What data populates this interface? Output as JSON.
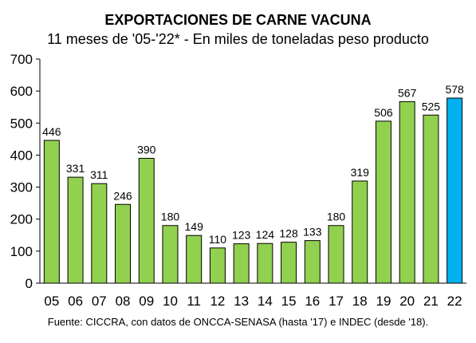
{
  "title": "EXPORTACIONES DE CARNE VACUNA",
  "subtitle": "11 meses de '05-'22* - En miles de toneladas peso producto",
  "source": "Fuente: CICCRA, con datos de ONCCA-SENASA (hasta '17) e INDEC (desde '18).",
  "colors": {
    "bar": "#92d050",
    "highlight_bar": "#00b0f0",
    "bar_border": "#000000",
    "axis": "#000000"
  },
  "chart_data": {
    "type": "bar",
    "title": "EXPORTACIONES DE CARNE VACUNA",
    "subtitle": "11 meses de '05-'22* - En miles de toneladas peso producto",
    "xlabel": "",
    "ylabel": "",
    "categories": [
      "05",
      "06",
      "07",
      "08",
      "09",
      "10",
      "11",
      "12",
      "13",
      "14",
      "15",
      "16",
      "17",
      "18",
      "19",
      "20",
      "21",
      "22"
    ],
    "values": [
      446,
      331,
      311,
      246,
      390,
      180,
      149,
      110,
      123,
      124,
      128,
      133,
      180,
      319,
      506,
      567,
      525,
      578
    ],
    "highlight_category": "22",
    "ylim": [
      0,
      700
    ],
    "yticks": [
      0,
      100,
      200,
      300,
      400,
      500,
      600,
      700
    ],
    "grid": false,
    "data_labels": true,
    "legend": "none"
  }
}
